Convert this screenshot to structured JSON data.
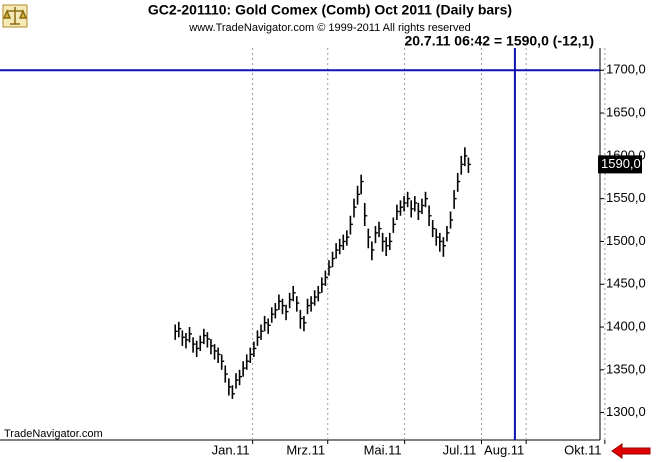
{
  "chart_data": {
    "type": "ohlc",
    "title": "GC2-201110:  Gold Comex (Comb) Oct 2011  (Daily bars)",
    "subtitle": "www.TradeNavigator.com © 1999-2011 All rights reserved",
    "annotation": "20.7.11 06:42 = 1590,0 (-12,1)",
    "footer": "TradeNavigator.com",
    "color": "#000000",
    "crosshair_color": "#1010b0",
    "crosshair": {
      "x": 288,
      "y": 1700
    },
    "price_label": {
      "value": 1590,
      "label": "1590,0"
    },
    "xlim": [
      0,
      330
    ],
    "ylim": [
      1268,
      1726
    ],
    "xticks": [
      {
        "value": 129,
        "label": "Jan.11"
      },
      {
        "value": 171,
        "label": "Mrz.11"
      },
      {
        "value": 214,
        "label": "Mai.11"
      },
      {
        "value": 257,
        "label": "Jul.11"
      },
      {
        "value": 282,
        "label": "Aug.11"
      },
      {
        "value": 326,
        "label": "Okt.11"
      }
    ],
    "yticks": [
      {
        "value": 1300,
        "label": "1300,0"
      },
      {
        "value": 1350,
        "label": "1350,0"
      },
      {
        "value": 1400,
        "label": "1400,0"
      },
      {
        "value": 1450,
        "label": "1450,0"
      },
      {
        "value": 1500,
        "label": "1500,0"
      },
      {
        "value": 1550,
        "label": "1550,0"
      },
      {
        "value": 1600,
        "label": "1600,0"
      },
      {
        "value": 1650,
        "label": "1650,0"
      },
      {
        "value": 1700,
        "label": "1700,0"
      }
    ],
    "grid": true,
    "x": [
      98,
      100,
      102,
      104,
      106,
      108,
      110,
      112,
      114,
      116,
      118,
      120,
      122,
      124,
      126,
      128,
      130,
      132,
      134,
      136,
      138,
      140,
      142,
      144,
      146,
      148,
      150,
      152,
      154,
      156,
      158,
      160,
      162,
      164,
      166,
      168,
      170,
      172,
      174,
      176,
      178,
      180,
      182,
      184,
      186,
      188,
      190,
      192,
      194,
      196,
      198,
      200,
      202,
      204,
      206,
      208,
      210,
      212,
      214,
      216,
      218,
      220,
      222,
      224,
      226,
      228,
      230,
      232,
      234,
      236,
      238,
      240,
      242,
      244,
      246,
      248,
      250,
      252,
      254,
      256,
      258,
      260,
      262
    ],
    "high": [
      1403,
      1406,
      1396,
      1393,
      1400,
      1388,
      1384,
      1390,
      1398,
      1394,
      1386,
      1380,
      1376,
      1368,
      1355,
      1340,
      1332,
      1346,
      1350,
      1360,
      1368,
      1376,
      1383,
      1396,
      1403,
      1413,
      1410,
      1423,
      1428,
      1438,
      1433,
      1426,
      1440,
      1448,
      1436,
      1420,
      1413,
      1433,
      1436,
      1443,
      1448,
      1458,
      1466,
      1478,
      1488,
      1498,
      1503,
      1508,
      1513,
      1530,
      1550,
      1565,
      1578,
      1545,
      1515,
      1500,
      1518,
      1523,
      1510,
      1505,
      1510,
      1528,
      1543,
      1548,
      1553,
      1558,
      1548,
      1553,
      1545,
      1550,
      1558,
      1542,
      1525,
      1515,
      1510,
      1505,
      1518,
      1535,
      1560,
      1580,
      1600,
      1610,
      1598
    ],
    "low": [
      1385,
      1388,
      1378,
      1375,
      1382,
      1370,
      1365,
      1372,
      1380,
      1376,
      1368,
      1362,
      1358,
      1350,
      1335,
      1320,
      1316,
      1328,
      1332,
      1342,
      1350,
      1358,
      1365,
      1378,
      1385,
      1395,
      1392,
      1405,
      1410,
      1420,
      1415,
      1408,
      1422,
      1430,
      1418,
      1398,
      1395,
      1415,
      1418,
      1425,
      1430,
      1440,
      1448,
      1460,
      1470,
      1480,
      1485,
      1490,
      1495,
      1508,
      1528,
      1543,
      1555,
      1518,
      1492,
      1478,
      1498,
      1505,
      1488,
      1483,
      1490,
      1510,
      1525,
      1530,
      1535,
      1540,
      1528,
      1535,
      1525,
      1532,
      1540,
      1518,
      1505,
      1495,
      1488,
      1482,
      1500,
      1515,
      1538,
      1558,
      1578,
      1588,
      1580
    ],
    "close": [
      1395,
      1398,
      1388,
      1385,
      1392,
      1380,
      1375,
      1382,
      1390,
      1386,
      1378,
      1372,
      1368,
      1360,
      1345,
      1330,
      1322,
      1338,
      1342,
      1352,
      1360,
      1368,
      1375,
      1388,
      1395,
      1405,
      1402,
      1415,
      1420,
      1430,
      1425,
      1418,
      1432,
      1440,
      1428,
      1410,
      1405,
      1425,
      1428,
      1435,
      1440,
      1450,
      1458,
      1470,
      1480,
      1490,
      1495,
      1500,
      1505,
      1520,
      1540,
      1555,
      1570,
      1530,
      1505,
      1490,
      1510,
      1515,
      1500,
      1495,
      1500,
      1520,
      1535,
      1540,
      1545,
      1550,
      1538,
      1545,
      1535,
      1542,
      1550,
      1530,
      1515,
      1505,
      1500,
      1495,
      1510,
      1525,
      1550,
      1570,
      1590,
      1600,
      1590
    ]
  }
}
